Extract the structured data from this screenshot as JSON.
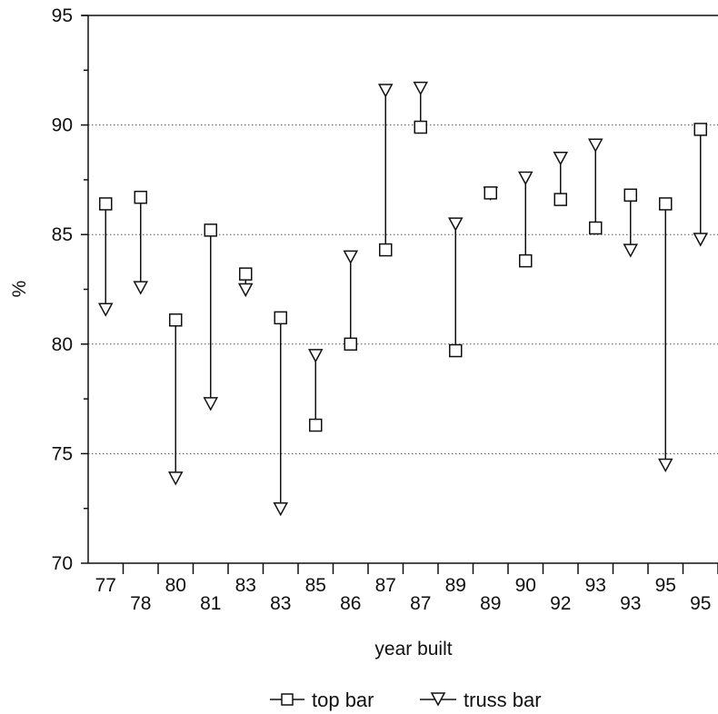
{
  "chart_data": {
    "type": "scatter",
    "title": "",
    "xlabel": "year built",
    "ylabel": "%",
    "ylim": [
      70,
      95
    ],
    "yticks": [
      "70",
      "75",
      "80",
      "85",
      "90",
      "95"
    ],
    "grid": "horizontal dotted at labeled y ticks",
    "legend_position": "bottom-center",
    "categories": [
      "77",
      "78",
      "80",
      "81",
      "83",
      "83",
      "85",
      "86",
      "87",
      "87",
      "89",
      "89",
      "90",
      "92",
      "93",
      "93",
      "95",
      "95"
    ],
    "series": [
      {
        "name": "top bar",
        "marker": "square",
        "values": [
          86.4,
          86.7,
          81.1,
          85.2,
          83.2,
          81.2,
          76.3,
          80.0,
          84.3,
          89.9,
          79.7,
          86.9,
          83.8,
          86.6,
          85.3,
          86.8,
          86.4,
          89.8
        ]
      },
      {
        "name": "truss bar",
        "marker": "triangle-down",
        "values": [
          81.6,
          82.6,
          73.9,
          77.3,
          82.5,
          72.5,
          79.5,
          84.0,
          91.6,
          91.7,
          85.5,
          86.9,
          87.6,
          88.5,
          89.1,
          84.3,
          74.5,
          84.8
        ]
      }
    ]
  }
}
